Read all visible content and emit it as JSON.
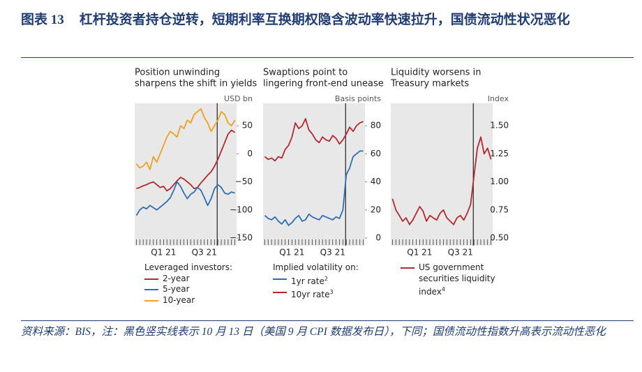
{
  "header": {
    "label": "图表 13",
    "title": "杠杆投资者持仓逆转，短期利率互换期权隐含波动率快速拉升，国债流动性状况恶化"
  },
  "footer": {
    "note": "资料来源：BIS，注：黑色竖实线表示 10 月 13 日（美国 9 月 CPI 数据发布日），下同；国债流动性指数升高表示流动性恶化"
  },
  "chart_data": [
    {
      "type": "line",
      "title": [
        "Position unwinding",
        "sharpens the shift in yields"
      ],
      "y_label": "USD bn",
      "categories": [
        null,
        null,
        null,
        null,
        null,
        null,
        null,
        null,
        "Q1 21",
        null,
        null,
        null,
        null,
        null,
        null,
        null,
        null,
        null,
        null,
        null,
        "Q3 21",
        null,
        null,
        null,
        null,
        null,
        null,
        null,
        null,
        null
      ],
      "legend_title": "Leveraged investors:",
      "series": [
        {
          "name": "2-year",
          "color": "#b5272d",
          "values": [
            -62,
            -60,
            -57,
            -55,
            -52,
            -50,
            -55,
            -60,
            -58,
            -66,
            -62,
            -55,
            -48,
            -42,
            -45,
            -50,
            -55,
            -62,
            -60,
            -52,
            -45,
            -38,
            -32,
            -22,
            -10,
            5,
            20,
            35,
            42,
            38
          ]
        },
        {
          "name": "5-year",
          "color": "#2e6db4",
          "values": [
            -110,
            -100,
            -95,
            -98,
            -92,
            -96,
            -100,
            -95,
            -90,
            -85,
            -78,
            -65,
            -50,
            -58,
            -70,
            -80,
            -72,
            -68,
            -60,
            -65,
            -78,
            -92,
            -80,
            -62,
            -55,
            -60,
            -70,
            -72,
            -68,
            -70
          ]
        },
        {
          "name": "10-year",
          "color": "#f0a01c",
          "values": [
            -18,
            -25,
            -22,
            -15,
            -28,
            -5,
            -15,
            0,
            15,
            30,
            40,
            35,
            30,
            50,
            45,
            60,
            55,
            70,
            75,
            80,
            65,
            55,
            40,
            50,
            60,
            75,
            70,
            55,
            50,
            60
          ]
        }
      ],
      "ylim": [
        -150,
        90
      ],
      "yticks": [
        50,
        0,
        {
          "value": -50,
          "label": "−50"
        },
        {
          "value": -100,
          "label": "−100"
        },
        {
          "value": -150,
          "label": "−150"
        }
      ]
    },
    {
      "type": "line",
      "title": [
        "Swaptions point to",
        "lingering front-end unease"
      ],
      "y_label": "Basis points",
      "categories": [
        null,
        null,
        null,
        null,
        null,
        null,
        null,
        null,
        "Q1 21",
        null,
        null,
        null,
        null,
        null,
        null,
        null,
        null,
        null,
        null,
        null,
        "Q3 21",
        null,
        null,
        null,
        null,
        null,
        null,
        null,
        null,
        null
      ],
      "legend_title": "Implied volatility on:",
      "series": [
        {
          "name": "1yr rate",
          "note": "2",
          "color": "#2e6db4",
          "values": [
            16,
            14,
            13,
            15,
            12,
            10,
            13,
            9,
            11,
            14,
            16,
            12,
            13,
            17,
            15,
            14,
            13,
            16,
            15,
            14,
            13,
            15,
            14,
            20,
            45,
            50,
            58,
            60,
            62,
            62
          ]
        },
        {
          "name": "10yr rate",
          "note": "3",
          "color": "#b5272d",
          "values": [
            58,
            56,
            57,
            55,
            58,
            57,
            63,
            66,
            72,
            82,
            78,
            80,
            85,
            77,
            74,
            70,
            68,
            72,
            70,
            69,
            73,
            71,
            67,
            70,
            74,
            79,
            76,
            80,
            82,
            83
          ]
        }
      ],
      "ylim": [
        0,
        96
      ],
      "yticks": [
        80,
        60,
        40,
        20,
        0
      ]
    },
    {
      "type": "line",
      "title": [
        "Liquidity worsens in",
        "Treasury markets"
      ],
      "y_label": "Index",
      "categories": [
        null,
        null,
        null,
        null,
        null,
        null,
        null,
        null,
        "Q1 21",
        null,
        null,
        null,
        null,
        null,
        null,
        null,
        null,
        null,
        null,
        null,
        "Q3 21",
        null,
        null,
        null,
        null,
        null,
        null,
        null,
        null,
        null
      ],
      "series": [
        {
          "name": "US government securities liquidity index",
          "note": "4",
          "color": "#b5272d",
          "values": [
            0.85,
            0.75,
            0.7,
            0.65,
            0.68,
            0.62,
            0.66,
            0.72,
            0.78,
            0.74,
            0.65,
            0.7,
            0.68,
            0.66,
            0.72,
            0.75,
            0.68,
            0.65,
            0.62,
            0.68,
            0.7,
            0.66,
            0.72,
            0.8,
            1.05,
            1.3,
            1.4,
            1.25,
            1.3,
            1.2
          ]
        }
      ],
      "ylim": [
        0.5,
        1.7
      ],
      "yticks": [
        {
          "value": 1.5,
          "label": "1.50"
        },
        1.25,
        {
          "value": 1.0,
          "label": "1.00"
        },
        0.75,
        {
          "value": 0.5,
          "label": "0.50"
        }
      ]
    }
  ]
}
